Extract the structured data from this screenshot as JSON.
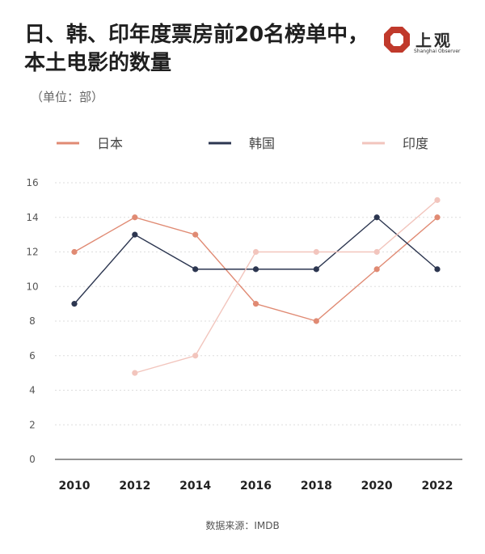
{
  "header": {
    "title": "日、韩、印年度票房前20名榜单中，本土电影的数量",
    "unit": "（单位：部）"
  },
  "logo": {
    "name_cn": "上观",
    "name_en": "Shanghai Observer",
    "icon": "octagon-logo-icon",
    "color": "#c0392b"
  },
  "chart_data": {
    "type": "line",
    "title": "日、韩、印年度票房前20名榜单中，本土电影的数量",
    "xlabel": "",
    "ylabel": "（单位：部）",
    "x": [
      2010,
      2012,
      2014,
      2016,
      2018,
      2020,
      2022
    ],
    "x_tick_labels": [
      "2010",
      "2012",
      "2014",
      "2016",
      "2018",
      "2020",
      "2022"
    ],
    "ylim": [
      0,
      16
    ],
    "y_ticks": [
      0,
      2,
      4,
      6,
      8,
      10,
      12,
      14,
      16
    ],
    "y_tick_labels": [
      "0",
      "2",
      "4",
      "6",
      "8",
      "10",
      "12",
      "14",
      "16"
    ],
    "grid": true,
    "legend_position": "top",
    "series": [
      {
        "name": "日本",
        "color": "#e08a73",
        "values": [
          12,
          14,
          13,
          9,
          8,
          11,
          14
        ]
      },
      {
        "name": "韩国",
        "color": "#2c3650",
        "values": [
          9,
          13,
          11,
          11,
          11,
          14,
          11
        ]
      },
      {
        "name": "印度",
        "color": "#f2c5bd",
        "values": [
          null,
          5,
          6,
          12,
          12,
          12,
          15
        ]
      }
    ]
  },
  "footer": {
    "source": "数据来源：IMDB"
  }
}
